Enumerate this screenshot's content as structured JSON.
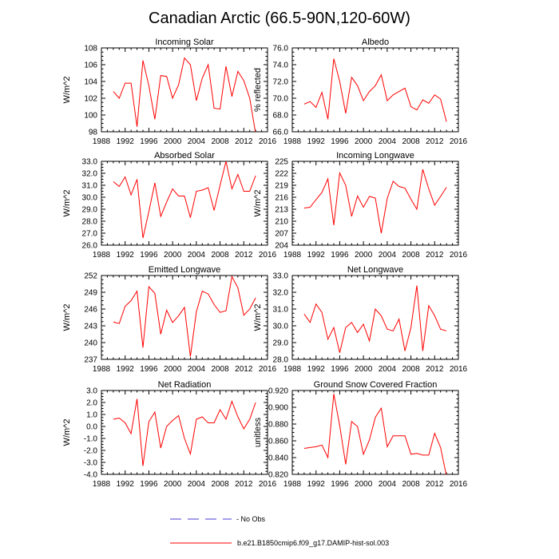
{
  "title": "Canadian Arctic (66.5-90N,120-60W)",
  "colors": {
    "model": "#ff0000",
    "obs": "#4b3bd6",
    "axis": "#000000"
  },
  "legend": [
    {
      "label": "- No Obs",
      "style": "dashed",
      "color": "#4b3bd6"
    },
    {
      "label": "b.e21.B1850cmip6.f09_g17.DAMIP-hist-sol.003",
      "style": "solid",
      "color": "#ff0000"
    }
  ],
  "chart_data": [
    {
      "type": "line",
      "title": "Incoming Solar",
      "ylabel": "W/m^2",
      "xlim": [
        1988,
        2016
      ],
      "ylim": [
        98,
        108
      ],
      "xticks": [
        "1988",
        "1992",
        "1996",
        "2000",
        "2004",
        "2008",
        "2012",
        "2016"
      ],
      "yticks": [
        "98",
        "100",
        "102",
        "104",
        "106",
        "108"
      ],
      "x": [
        1990,
        1991,
        1992,
        1993,
        1994,
        1995,
        1996,
        1997,
        1998,
        1999,
        2000,
        2001,
        2002,
        2003,
        2004,
        2005,
        2006,
        2007,
        2008,
        2009,
        2010,
        2011,
        2012,
        2013,
        2014
      ],
      "series": [
        {
          "values": [
            102.8,
            102.0,
            103.8,
            103.8,
            98.6,
            106.5,
            103.5,
            99.5,
            104.7,
            104.6,
            102.0,
            103.6,
            106.8,
            106.0,
            101.7,
            104.4,
            106.0,
            100.8,
            100.7,
            105.8,
            102.2,
            105.2,
            104.1,
            102.0,
            97.8
          ]
        }
      ]
    },
    {
      "type": "line",
      "title": "Albedo",
      "ylabel": "% reflected",
      "xlim": [
        1988,
        2016
      ],
      "ylim": [
        66.0,
        76.0
      ],
      "xticks": [
        "1988",
        "1992",
        "1996",
        "2000",
        "2004",
        "2008",
        "2012",
        "2016"
      ],
      "yticks": [
        "66.0",
        "68.0",
        "70.0",
        "72.0",
        "74.0",
        "76.0"
      ],
      "x": [
        1990,
        1991,
        1992,
        1993,
        1994,
        1995,
        1996,
        1997,
        1998,
        1999,
        2000,
        2001,
        2002,
        2003,
        2004,
        2005,
        2006,
        2007,
        2008,
        2009,
        2010,
        2011,
        2012,
        2013,
        2014
      ],
      "series": [
        {
          "values": [
            69.3,
            69.6,
            68.9,
            70.7,
            67.5,
            74.7,
            72.0,
            68.2,
            72.5,
            71.5,
            69.7,
            70.8,
            71.5,
            72.8,
            69.7,
            70.4,
            70.8,
            71.2,
            69.0,
            68.6,
            69.8,
            69.4,
            70.4,
            69.9,
            67.2
          ]
        }
      ]
    },
    {
      "type": "line",
      "title": "Absorbed Solar",
      "ylabel": "W/m^2",
      "xlim": [
        1988,
        2016
      ],
      "ylim": [
        26.0,
        33.0
      ],
      "xticks": [
        "1988",
        "1992",
        "1996",
        "2000",
        "2004",
        "2008",
        "2012",
        "2016"
      ],
      "yticks": [
        "26.0",
        "27.0",
        "28.0",
        "29.0",
        "30.0",
        "31.0",
        "32.0",
        "33.0"
      ],
      "x": [
        1990,
        1991,
        1992,
        1993,
        1994,
        1995,
        1996,
        1997,
        1998,
        1999,
        2000,
        2001,
        2002,
        2003,
        2004,
        2005,
        2006,
        2007,
        2008,
        2009,
        2010,
        2011,
        2012,
        2013,
        2014
      ],
      "series": [
        {
          "values": [
            31.3,
            30.9,
            31.7,
            30.2,
            31.5,
            26.6,
            28.8,
            31.2,
            28.4,
            29.6,
            30.7,
            30.1,
            30.1,
            28.3,
            30.5,
            30.6,
            30.8,
            28.9,
            31.0,
            33.0,
            30.7,
            31.9,
            30.5,
            30.5,
            31.8
          ]
        }
      ]
    },
    {
      "type": "line",
      "title": "Incoming Longwave",
      "ylabel": "W/m^2",
      "xlim": [
        1988,
        2016
      ],
      "ylim": [
        204,
        225
      ],
      "xticks": [
        "1988",
        "1992",
        "1996",
        "2000",
        "2004",
        "2008",
        "2012",
        "2016"
      ],
      "yticks": [
        "204",
        "207",
        "210",
        "213",
        "216",
        "219",
        "222",
        "225"
      ],
      "x": [
        1990,
        1991,
        1992,
        1993,
        1994,
        1995,
        1996,
        1997,
        1998,
        1999,
        2000,
        2001,
        2002,
        2003,
        2004,
        2005,
        2006,
        2007,
        2008,
        2009,
        2010,
        2011,
        2012,
        2013,
        2014
      ],
      "series": [
        {
          "values": [
            213.3,
            213.5,
            215.4,
            217.2,
            220.6,
            209.0,
            222.1,
            219.0,
            211.2,
            216.3,
            213.5,
            216.2,
            215.8,
            207.0,
            215.7,
            220.0,
            218.7,
            218.3,
            215.5,
            213.0,
            223.0,
            218.1,
            214.0,
            216.2,
            218.5
          ]
        }
      ]
    },
    {
      "type": "line",
      "title": "Emitted Longwave",
      "ylabel": "W/m^2",
      "xlim": [
        1988,
        2016
      ],
      "ylim": [
        237,
        252
      ],
      "xticks": [
        "1988",
        "1992",
        "1996",
        "2000",
        "2004",
        "2008",
        "2012",
        "2016"
      ],
      "yticks": [
        "237",
        "240",
        "243",
        "246",
        "249",
        "252"
      ],
      "x": [
        1990,
        1991,
        1992,
        1993,
        1994,
        1995,
        1996,
        1997,
        1998,
        1999,
        2000,
        2001,
        2002,
        2003,
        2004,
        2005,
        2006,
        2007,
        2008,
        2009,
        2010,
        2011,
        2012,
        2013,
        2014
      ],
      "series": [
        {
          "values": [
            243.7,
            243.4,
            246.5,
            247.5,
            249.2,
            239.1,
            250.0,
            248.8,
            241.5,
            245.8,
            243.6,
            244.8,
            246.3,
            237.5,
            245.5,
            249.2,
            248.7,
            246.8,
            245.4,
            245.7,
            251.8,
            249.8,
            244.9,
            246.0,
            248.0
          ]
        }
      ]
    },
    {
      "type": "line",
      "title": "Net Longwave",
      "ylabel": "W/m^2",
      "xlim": [
        1988,
        2016
      ],
      "ylim": [
        28.0,
        33.0
      ],
      "xticks": [
        "1988",
        "1992",
        "1996",
        "2000",
        "2004",
        "2008",
        "2012",
        "2016"
      ],
      "yticks": [
        "28.0",
        "29.0",
        "30.0",
        "31.0",
        "32.0",
        "33.0"
      ],
      "x": [
        1990,
        1991,
        1992,
        1993,
        1994,
        1995,
        1996,
        1997,
        1998,
        1999,
        2000,
        2001,
        2002,
        2003,
        2004,
        2005,
        2006,
        2007,
        2008,
        2009,
        2010,
        2011,
        2012,
        2013,
        2014
      ],
      "series": [
        {
          "values": [
            30.7,
            30.2,
            31.3,
            30.8,
            29.2,
            29.9,
            28.4,
            29.9,
            30.2,
            29.6,
            30.1,
            29.1,
            31.0,
            30.6,
            29.8,
            29.7,
            30.4,
            28.5,
            29.9,
            32.4,
            28.5,
            31.2,
            30.6,
            29.8,
            29.7
          ]
        }
      ]
    },
    {
      "type": "line",
      "title": "Net Radiation",
      "ylabel": "W/m^2",
      "xlim": [
        1988,
        2016
      ],
      "ylim": [
        -4.0,
        3.0
      ],
      "xticks": [
        "1988",
        "1992",
        "1996",
        "2000",
        "2004",
        "2008",
        "2012",
        "2016"
      ],
      "yticks": [
        "-4.0",
        "-3.0",
        "-2.0",
        "-1.0",
        "0.0",
        "1.0",
        "2.0",
        "3.0"
      ],
      "x": [
        1990,
        1991,
        1992,
        1993,
        1994,
        1995,
        1996,
        1997,
        1998,
        1999,
        2000,
        2001,
        2002,
        2003,
        2004,
        2005,
        2006,
        2007,
        2008,
        2009,
        2010,
        2011,
        2012,
        2013,
        2014
      ],
      "series": [
        {
          "values": [
            0.6,
            0.7,
            0.3,
            -0.6,
            2.3,
            -3.3,
            0.4,
            1.2,
            -1.8,
            0.0,
            0.5,
            0.9,
            -1.0,
            -2.3,
            0.6,
            0.8,
            0.3,
            0.3,
            1.4,
            0.6,
            2.1,
            0.8,
            -0.2,
            0.6,
            2.0
          ]
        }
      ]
    },
    {
      "type": "line",
      "title": "Ground Snow Covered Fraction",
      "ylabel": "unitless",
      "xlim": [
        1988,
        2016
      ],
      "ylim": [
        0.82,
        0.92
      ],
      "xticks": [
        "1988",
        "1992",
        "1996",
        "2000",
        "2004",
        "2008",
        "2012",
        "2016"
      ],
      "yticks": [
        "0.820",
        "0.840",
        "0.860",
        "0.880",
        "0.900",
        "0.920"
      ],
      "x": [
        1990,
        1991,
        1992,
        1993,
        1994,
        1995,
        1996,
        1997,
        1998,
        1999,
        2000,
        2001,
        2002,
        2003,
        2004,
        2005,
        2006,
        2007,
        2008,
        2009,
        2010,
        2011,
        2012,
        2013,
        2014
      ],
      "series": [
        {
          "values": [
            0.851,
            0.852,
            0.853,
            0.855,
            0.84,
            0.916,
            0.878,
            0.832,
            0.883,
            0.877,
            0.844,
            0.861,
            0.888,
            0.899,
            0.853,
            0.866,
            0.866,
            0.866,
            0.844,
            0.845,
            0.843,
            0.843,
            0.869,
            0.852,
            0.818
          ]
        }
      ]
    }
  ]
}
